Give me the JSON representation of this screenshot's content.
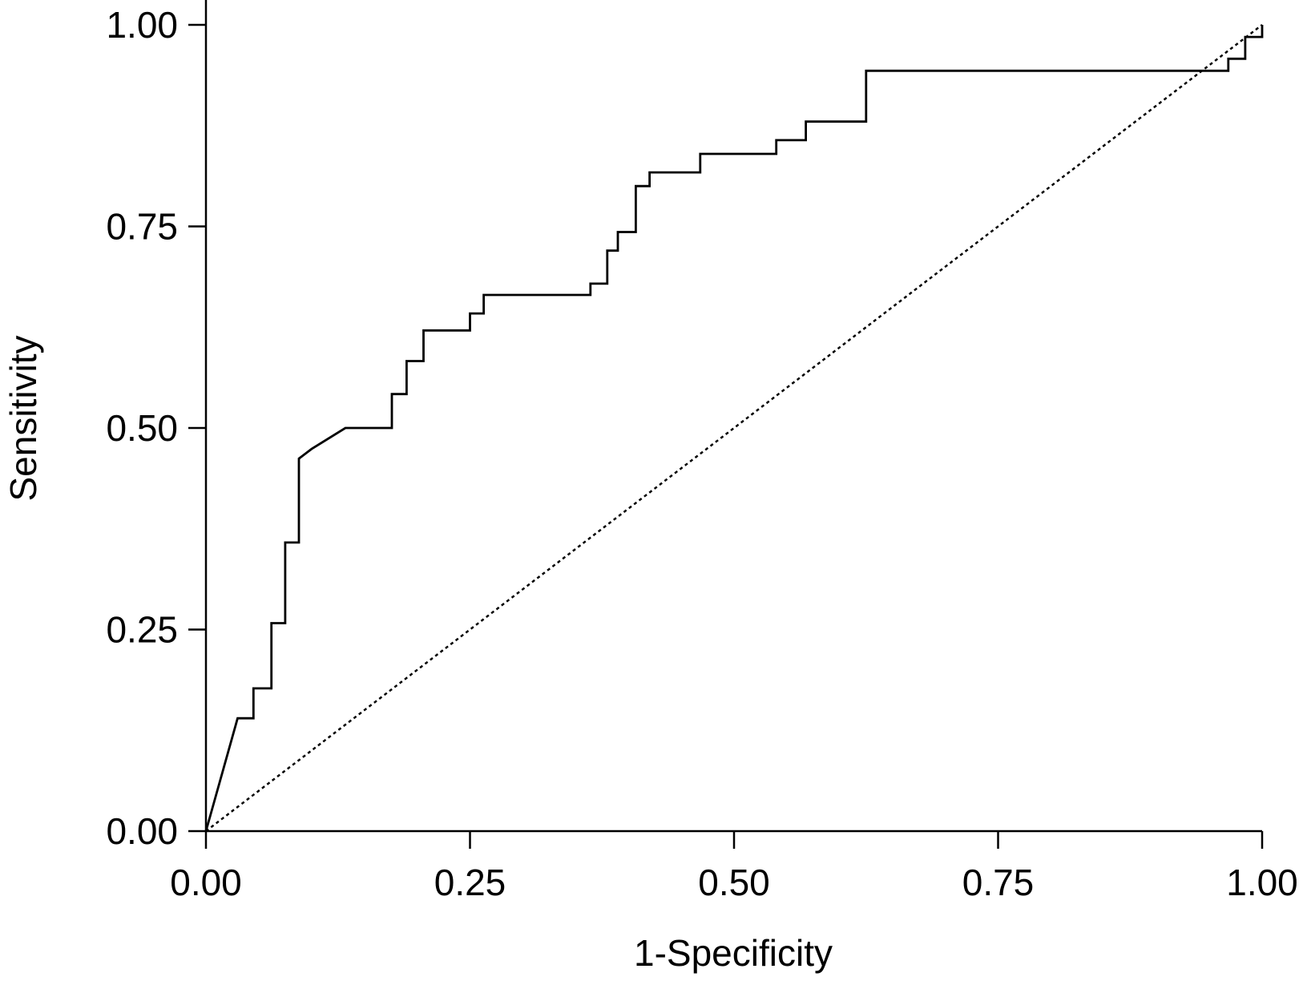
{
  "chart_data": {
    "type": "line",
    "title": "",
    "xlabel": "1-Specificity",
    "ylabel": "Sensitivity",
    "xlim": [
      0,
      1
    ],
    "ylim": [
      0,
      1
    ],
    "grid": false,
    "x_ticks": [
      "0.00",
      "0.25",
      "0.50",
      "0.75",
      "1.00"
    ],
    "y_ticks": [
      "0.00",
      "0.25",
      "0.50",
      "0.75",
      "1.00"
    ],
    "series": [
      {
        "style": "solid",
        "color": "#000000",
        "points": [
          [
            0.0,
            0.0
          ],
          [
            0.03,
            0.14
          ],
          [
            0.045,
            0.14
          ],
          [
            0.045,
            0.177
          ],
          [
            0.062,
            0.177
          ],
          [
            0.062,
            0.258
          ],
          [
            0.075,
            0.258
          ],
          [
            0.075,
            0.358
          ],
          [
            0.088,
            0.358
          ],
          [
            0.088,
            0.462
          ],
          [
            0.1,
            0.474
          ],
          [
            0.132,
            0.5
          ],
          [
            0.176,
            0.5
          ],
          [
            0.176,
            0.542
          ],
          [
            0.19,
            0.542
          ],
          [
            0.19,
            0.583
          ],
          [
            0.206,
            0.583
          ],
          [
            0.206,
            0.621
          ],
          [
            0.25,
            0.621
          ],
          [
            0.25,
            0.642
          ],
          [
            0.263,
            0.642
          ],
          [
            0.263,
            0.665
          ],
          [
            0.364,
            0.665
          ],
          [
            0.364,
            0.679
          ],
          [
            0.38,
            0.679
          ],
          [
            0.38,
            0.72
          ],
          [
            0.39,
            0.72
          ],
          [
            0.39,
            0.743
          ],
          [
            0.407,
            0.743
          ],
          [
            0.407,
            0.8
          ],
          [
            0.42,
            0.8
          ],
          [
            0.42,
            0.817
          ],
          [
            0.468,
            0.817
          ],
          [
            0.468,
            0.84
          ],
          [
            0.54,
            0.84
          ],
          [
            0.54,
            0.857
          ],
          [
            0.568,
            0.857
          ],
          [
            0.568,
            0.88
          ],
          [
            0.625,
            0.88
          ],
          [
            0.625,
            0.943
          ],
          [
            0.968,
            0.943
          ],
          [
            0.968,
            0.958
          ],
          [
            0.984,
            0.958
          ],
          [
            0.984,
            0.985
          ],
          [
            1.0,
            0.985
          ],
          [
            1.0,
            1.0
          ]
        ]
      },
      {
        "style": "dotted",
        "color": "#000000",
        "points": [
          [
            0.0,
            0.0
          ],
          [
            1.0,
            1.0
          ]
        ]
      }
    ]
  }
}
